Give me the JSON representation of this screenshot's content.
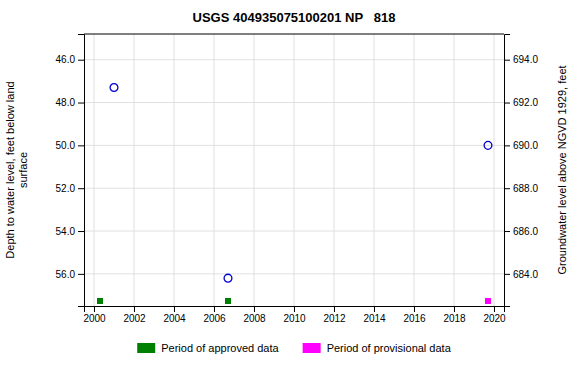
{
  "chart_data": {
    "type": "scatter",
    "title": "USGS 404935075100201 NP   818",
    "ylabel": "Depth to water level, feet below land\nsurface",
    "y2label": "Groundwater level above NGVD 1929, feet",
    "xlim": [
      1999.5,
      2020.5
    ],
    "xticks": [
      2000,
      2002,
      2004,
      2006,
      2008,
      2010,
      2012,
      2014,
      2016,
      2018,
      2020
    ],
    "ylim": [
      57.5,
      44.8
    ],
    "yticks": [
      {
        "value": 46.0,
        "label": "46.0"
      },
      {
        "value": 48.0,
        "label": "48.0"
      },
      {
        "value": 50.0,
        "label": "50.0"
      },
      {
        "value": 52.0,
        "label": "52.0"
      },
      {
        "value": 54.0,
        "label": "54.0"
      },
      {
        "value": 56.0,
        "label": "56.0"
      }
    ],
    "y2lim": [
      682.5,
      695.2
    ],
    "y2ticks": [
      {
        "value": 684.0,
        "label": "684.0"
      },
      {
        "value": 686.0,
        "label": "686.0"
      },
      {
        "value": 688.0,
        "label": "688.0"
      },
      {
        "value": 690.0,
        "label": "690.0"
      },
      {
        "value": 692.0,
        "label": "692.0"
      },
      {
        "value": 694.0,
        "label": "694.0"
      }
    ],
    "grid": true,
    "legend": "bottom",
    "series": [
      {
        "type": "scatter",
        "color": "#0000cc",
        "marker": "circle",
        "x": [
          2001.0,
          2006.7,
          2019.7
        ],
        "values": [
          47.3,
          56.2,
          50.0
        ]
      },
      {
        "type": "rug",
        "name": "Period of approved data",
        "color": "#008000",
        "marker": "square",
        "x": [
          2000.3,
          2006.7
        ]
      },
      {
        "type": "rug",
        "name": "Period of provisional data",
        "color": "#ff00ff",
        "marker": "square",
        "x": [
          2019.7
        ]
      }
    ]
  }
}
